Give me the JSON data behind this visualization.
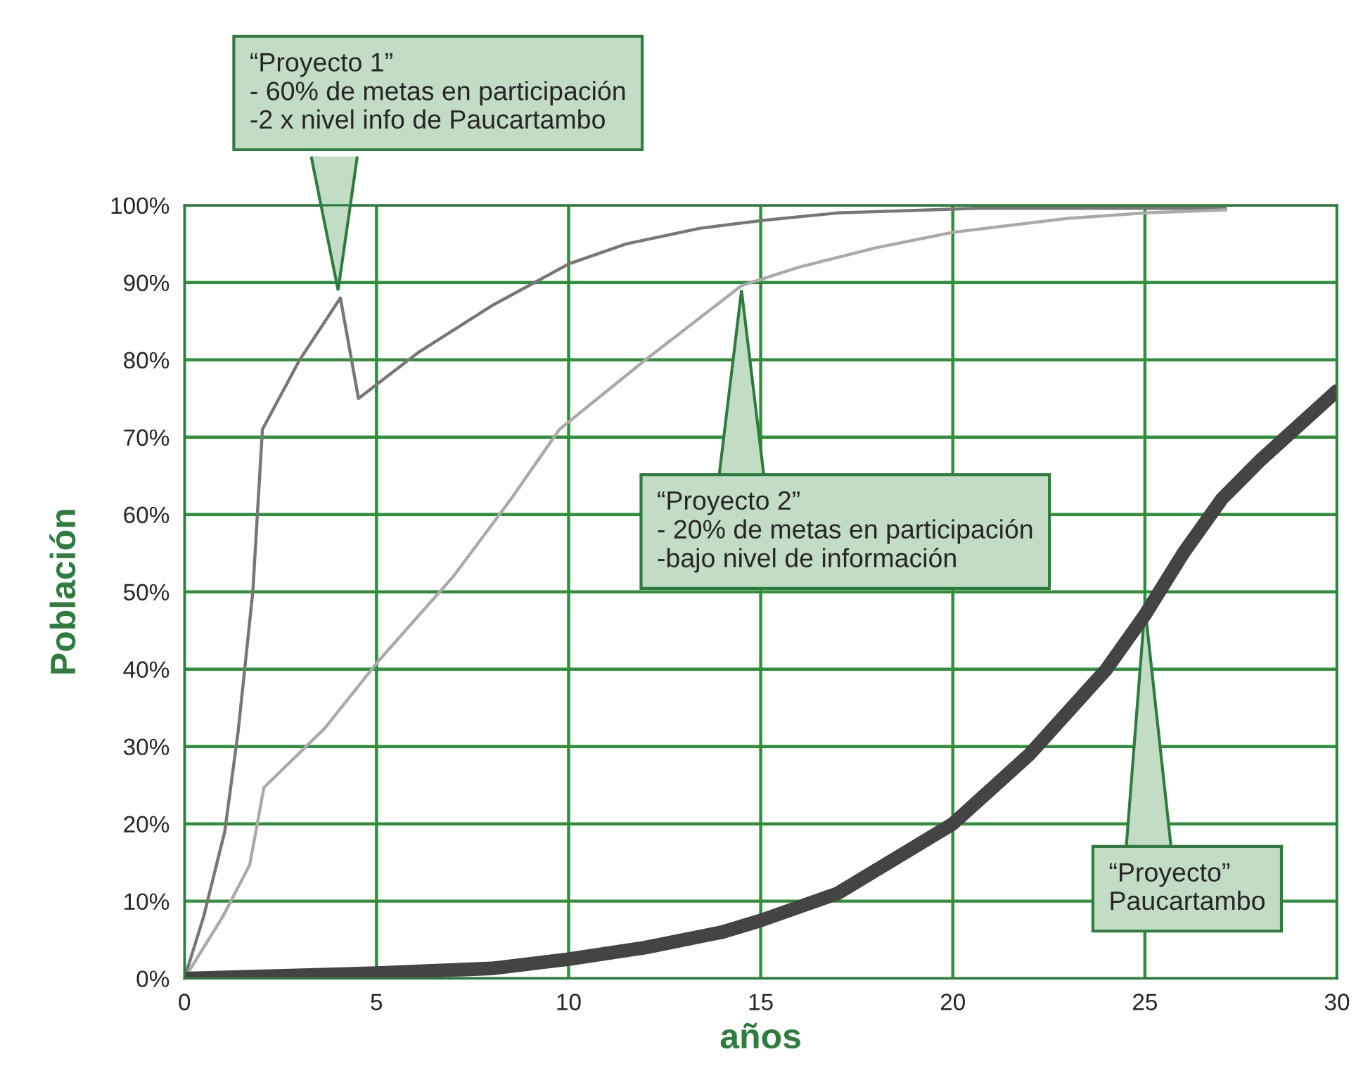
{
  "chart_data": {
    "type": "line",
    "xlabel": "años",
    "ylabel": "Población",
    "xlim": [
      0,
      30
    ],
    "ylim": [
      0,
      100
    ],
    "xticks": [
      0,
      5,
      10,
      15,
      20,
      25,
      30
    ],
    "yticks": [
      {
        "value": 0,
        "label": "0%"
      },
      {
        "value": 10,
        "label": "10%"
      },
      {
        "value": 20,
        "label": "20%"
      },
      {
        "value": 30,
        "label": "30%"
      },
      {
        "value": 40,
        "label": "40%"
      },
      {
        "value": 50,
        "label": "50%"
      },
      {
        "value": 60,
        "label": "60%"
      },
      {
        "value": 70,
        "label": "70%"
      },
      {
        "value": 80,
        "label": "80%"
      },
      {
        "value": 90,
        "label": "90%"
      },
      {
        "value": 100,
        "label": "100%"
      }
    ],
    "grid": true,
    "marker": "none",
    "line_style": "solid",
    "series": [
      {
        "color": "#777777",
        "x": [
          0,
          0.5,
          1.05,
          1.4,
          1.78,
          2.03,
          3,
          4.06,
          4.53,
          6.1,
          8,
          10,
          11.5,
          13.4,
          15,
          17,
          20.6,
          23,
          27.1
        ],
        "values": [
          0,
          8,
          19,
          32,
          50,
          71,
          80,
          88,
          75,
          81,
          87,
          92.4,
          95,
          97,
          98,
          99,
          99.6,
          99.6,
          99.6
        ]
      },
      {
        "color": "#aaaaaa",
        "x": [
          0,
          1,
          1.7,
          2.07,
          3.66,
          5.04,
          7,
          8.5,
          9.76,
          12,
          14.5,
          16,
          18,
          20,
          23,
          25,
          27.1
        ],
        "values": [
          0,
          8,
          14.7,
          24.7,
          32.4,
          41,
          52,
          62,
          71,
          80,
          89.6,
          92,
          94.5,
          96.5,
          98.3,
          99,
          99.4
        ]
      },
      {
        "color": "#444444",
        "x": [
          0,
          5,
          8,
          10,
          12,
          14,
          15,
          17,
          18,
          20,
          22,
          24,
          25,
          26,
          27,
          28,
          30
        ],
        "values": [
          0,
          0.7,
          1.3,
          2.5,
          4,
          6,
          7.5,
          11,
          14,
          20,
          29,
          40,
          47,
          55,
          62,
          67,
          76
        ]
      }
    ],
    "annotations": [
      {
        "text": "“Proyecto 1”\n- 60% de metas en participación\n-2 x nivel info de Paucartambo",
        "x": 4,
        "y": 89
      },
      {
        "text": "“Proyecto 2”\n- 20% de metas en participación\n-bajo nivel de información",
        "x": 14.5,
        "y": 89
      },
      {
        "text": "“Proyecto”\nPaucartambo",
        "x": 25,
        "y": 48
      }
    ]
  }
}
